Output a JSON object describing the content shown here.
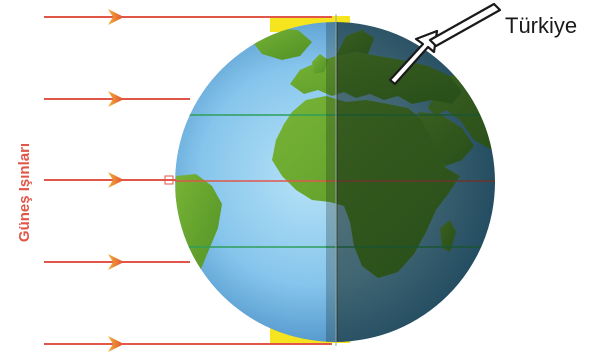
{
  "labels": {
    "sun_rays": "Güneş Işınları",
    "country": "Türkiye"
  },
  "colors": {
    "ray": "#e0574a",
    "arrowhead": "#e8533f",
    "ocean_light": "#a9dcf5",
    "ocean_dark": "#3f86c0",
    "land": "#6aa82e",
    "polar_light": "#f6e51e",
    "night_shade": "#0a1a10"
  },
  "icons": {
    "ray": "arrow-right-icon",
    "pointer": "hollow-arrow-icon"
  }
}
